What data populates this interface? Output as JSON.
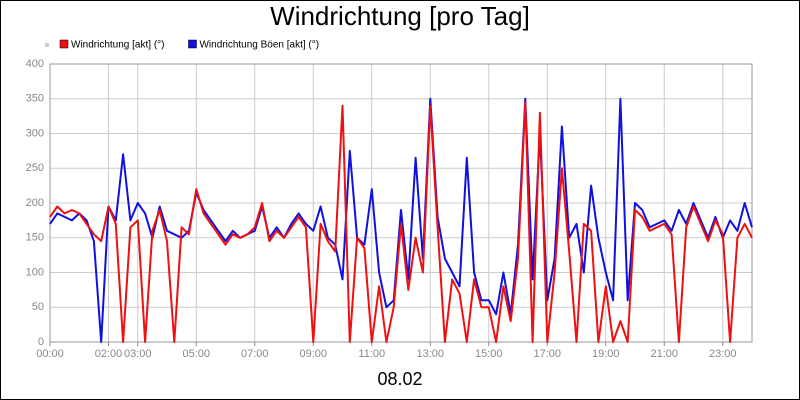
{
  "chart_data": {
    "type": "line",
    "title": "Windrichtung [pro Tag]",
    "x_label": "08.02",
    "x": [
      0,
      0.25,
      0.5,
      0.75,
      1,
      1.25,
      1.5,
      1.75,
      2,
      2.25,
      2.5,
      2.75,
      3,
      3.25,
      3.5,
      3.75,
      4,
      4.25,
      4.5,
      4.75,
      5,
      5.25,
      5.5,
      5.75,
      6,
      6.25,
      6.5,
      6.75,
      7,
      7.25,
      7.5,
      7.75,
      8,
      8.25,
      8.5,
      8.75,
      9,
      9.25,
      9.5,
      9.75,
      10,
      10.25,
      10.5,
      10.75,
      11,
      11.25,
      11.5,
      11.75,
      12,
      12.25,
      12.5,
      12.75,
      13,
      13.25,
      13.5,
      13.75,
      14,
      14.25,
      14.5,
      14.75,
      15,
      15.25,
      15.5,
      15.75,
      16,
      16.25,
      16.5,
      16.75,
      17,
      17.25,
      17.5,
      17.75,
      18,
      18.25,
      18.5,
      18.75,
      19,
      19.25,
      19.5,
      19.75,
      20,
      20.25,
      20.5,
      20.75,
      21,
      21.25,
      21.5,
      21.75,
      22,
      22.25,
      22.5,
      22.75,
      23,
      23.25,
      23.5,
      23.75,
      24
    ],
    "series": [
      {
        "name": "Windrichtung [akt] (°)",
        "color": "#ee1111",
        "values": [
          180,
          195,
          185,
          190,
          185,
          170,
          155,
          145,
          195,
          170,
          0,
          165,
          175,
          0,
          160,
          190,
          145,
          0,
          165,
          155,
          220,
          185,
          170,
          155,
          140,
          155,
          150,
          155,
          165,
          200,
          145,
          160,
          150,
          165,
          180,
          165,
          0,
          170,
          145,
          130,
          340,
          0,
          150,
          135,
          0,
          80,
          0,
          50,
          170,
          75,
          150,
          100,
          340,
          165,
          0,
          90,
          70,
          0,
          90,
          50,
          50,
          0,
          80,
          30,
          120,
          345,
          0,
          330,
          0,
          100,
          250,
          130,
          0,
          170,
          160,
          0,
          80,
          0,
          30,
          0,
          190,
          180,
          160,
          165,
          170,
          155,
          0,
          165,
          195,
          170,
          145,
          175,
          155,
          0,
          150,
          170,
          150
        ]
      },
      {
        "name": "Windrichtung Böen [akt] (°)",
        "color": "#1111dd",
        "values": [
          170,
          185,
          180,
          175,
          185,
          175,
          145,
          0,
          195,
          175,
          270,
          175,
          200,
          185,
          150,
          195,
          160,
          155,
          150,
          160,
          215,
          190,
          175,
          160,
          145,
          160,
          150,
          155,
          160,
          195,
          150,
          165,
          150,
          170,
          185,
          170,
          160,
          195,
          150,
          140,
          90,
          275,
          150,
          140,
          220,
          100,
          50,
          60,
          190,
          90,
          265,
          120,
          350,
          180,
          120,
          100,
          80,
          265,
          100,
          60,
          60,
          40,
          100,
          40,
          140,
          350,
          90,
          300,
          60,
          120,
          310,
          150,
          170,
          100,
          225,
          150,
          100,
          60,
          350,
          60,
          200,
          190,
          165,
          170,
          175,
          160,
          190,
          170,
          200,
          175,
          150,
          180,
          150,
          175,
          160,
          200,
          165
        ]
      }
    ],
    "xlim": [
      0,
      24
    ],
    "xticks": [
      {
        "value": 0,
        "label": "00:00"
      },
      {
        "value": 2,
        "label": "02:00"
      },
      {
        "value": 3,
        "label": "03:00"
      },
      {
        "value": 5,
        "label": "05:00"
      },
      {
        "value": 7,
        "label": "07:00"
      },
      {
        "value": 9,
        "label": "09:00"
      },
      {
        "value": 11,
        "label": "11:00"
      },
      {
        "value": 13,
        "label": "13:00"
      },
      {
        "value": 15,
        "label": "15:00"
      },
      {
        "value": 17,
        "label": "17:00"
      },
      {
        "value": 19,
        "label": "19:00"
      },
      {
        "value": 21,
        "label": "21:00"
      },
      {
        "value": 23,
        "label": "23:00"
      }
    ],
    "ylim": [
      0,
      400
    ],
    "yticks": [
      0,
      50,
      100,
      150,
      200,
      250,
      300,
      350,
      400
    ],
    "grid": true
  }
}
